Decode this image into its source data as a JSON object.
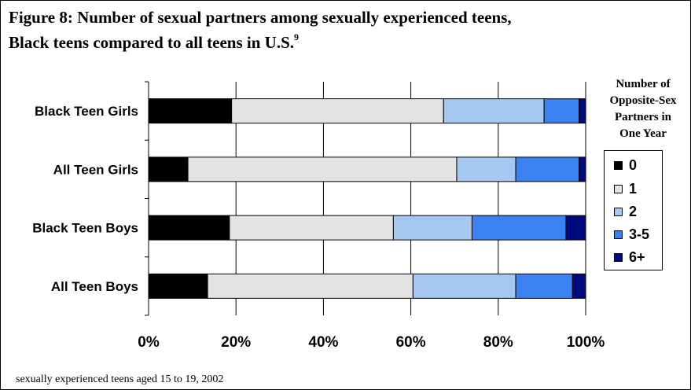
{
  "figure": {
    "title_line_1": "Figure 8: Number of sexual partners among sexually experienced teens,",
    "title_line_2": "Black teens compared to all teens in U.S.",
    "title_superscript": "9",
    "footnote": "sexually experienced teens aged 15 to 19, 2002"
  },
  "legend": {
    "title_lines": [
      "Number of",
      "Opposite-Sex",
      "Partners in",
      "One Year"
    ],
    "placement": "right",
    "items": [
      {
        "label": "0",
        "color": "#000000"
      },
      {
        "label": "1",
        "color": "#e3e3e3"
      },
      {
        "label": "2",
        "color": "#a6c8f0"
      },
      {
        "label": "3-5",
        "color": "#3b82f0"
      },
      {
        "label": "6+",
        "color": "#000a80"
      }
    ]
  },
  "chart_data": {
    "type": "bar",
    "orientation": "horizontal",
    "stacked": true,
    "percent_stacked": true,
    "categories": [
      "Black Teen Girls",
      "All Teen Girls",
      "Black Teen Boys",
      "All Teen Boys"
    ],
    "series": [
      {
        "name": "0",
        "color": "#000000",
        "values": [
          19,
          9,
          18.5,
          13.5
        ]
      },
      {
        "name": "1",
        "color": "#e3e3e3",
        "values": [
          48.5,
          61.5,
          37.5,
          47
        ]
      },
      {
        "name": "2",
        "color": "#a6c8f0",
        "values": [
          23,
          13.5,
          18,
          23.5
        ]
      },
      {
        "name": "3-5",
        "color": "#3b82f0",
        "values": [
          8,
          14.5,
          21.5,
          13
        ]
      },
      {
        "name": "6+",
        "color": "#000a80",
        "values": [
          1.5,
          1.5,
          4.5,
          3
        ]
      }
    ],
    "xlim": [
      0,
      100
    ],
    "x_ticks": [
      0,
      20,
      40,
      60,
      80,
      100
    ],
    "x_tick_labels": [
      "0%",
      "20%",
      "40%",
      "60%",
      "80%",
      "100%"
    ],
    "grid": "vertical",
    "xlabel": "",
    "ylabel": ""
  }
}
